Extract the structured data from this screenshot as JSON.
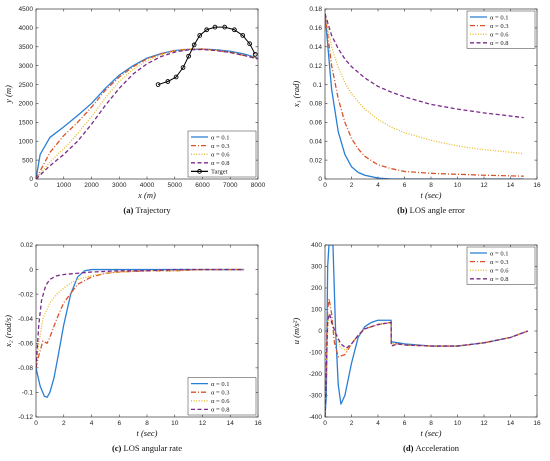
{
  "chart_data": [
    {
      "type": "line",
      "caption_letter": "(a)",
      "caption_text": "Trajectory",
      "xlabel": "x (m)",
      "ylabel": "y (m)",
      "xlim": [
        0,
        8000
      ],
      "ylim": [
        0,
        4500
      ],
      "xticks": [
        0,
        1000,
        2000,
        3000,
        4000,
        5000,
        6000,
        7000,
        8000
      ],
      "yticks": [
        0,
        500,
        1000,
        1500,
        2000,
        2500,
        3000,
        3500,
        4000,
        4500
      ],
      "legend_position": "bottom-right",
      "series": [
        {
          "name": "α = 0.1",
          "color": "#2a7fd4",
          "style": "solid",
          "x": [
            0,
            150,
            500,
            1000,
            1500,
            2000,
            2500,
            3000,
            3500,
            4000,
            4500,
            5000,
            5500,
            6000,
            6500,
            7000,
            7500,
            8000
          ],
          "y": [
            0,
            650,
            1100,
            1380,
            1680,
            2000,
            2400,
            2750,
            3000,
            3200,
            3320,
            3400,
            3430,
            3440,
            3420,
            3380,
            3310,
            3200
          ]
        },
        {
          "name": "α = 0.3",
          "color": "#d9532a",
          "style": "dashdot",
          "x": [
            0,
            500,
            1000,
            1500,
            2000,
            2500,
            3000,
            3500,
            4000,
            4500,
            5000,
            5500,
            6000,
            6500,
            7000,
            7500,
            8000
          ],
          "y": [
            0,
            700,
            1150,
            1500,
            1900,
            2350,
            2700,
            2970,
            3180,
            3310,
            3400,
            3440,
            3440,
            3400,
            3350,
            3270,
            3180
          ]
        },
        {
          "name": "α = 0.6",
          "color": "#e8b82a",
          "style": "dotted",
          "x": [
            0,
            500,
            1000,
            1500,
            2000,
            2500,
            3000,
            3500,
            4000,
            4500,
            5000,
            5500,
            6000,
            6500,
            7000,
            7500,
            8000
          ],
          "y": [
            0,
            450,
            800,
            1200,
            1650,
            2150,
            2580,
            2900,
            3130,
            3290,
            3390,
            3440,
            3440,
            3410,
            3360,
            3280,
            3200
          ]
        },
        {
          "name": "α = 0.8",
          "color": "#7b2a8c",
          "style": "dashed",
          "x": [
            0,
            500,
            1000,
            1500,
            2000,
            2500,
            3000,
            3500,
            4000,
            4500,
            5000,
            5500,
            6000,
            6500,
            7000,
            7500,
            8000
          ],
          "y": [
            0,
            350,
            650,
            1000,
            1450,
            1950,
            2400,
            2780,
            3050,
            3240,
            3360,
            3420,
            3430,
            3400,
            3350,
            3270,
            3180
          ]
        },
        {
          "name": "Target",
          "color": "#000000",
          "style": "solid",
          "markers": true,
          "x": [
            4400,
            4750,
            5050,
            5300,
            5500,
            5700,
            5900,
            6150,
            6450,
            6800,
            7150,
            7450,
            7700,
            7900
          ],
          "y": [
            2500,
            2580,
            2700,
            2950,
            3250,
            3550,
            3800,
            3950,
            4020,
            4020,
            3950,
            3800,
            3580,
            3300
          ]
        }
      ]
    },
    {
      "type": "line",
      "caption_letter": "(b)",
      "caption_text": "LOS angle error",
      "xlabel": "t (sec)",
      "ylabel": "x₁ (rad)",
      "xlim": [
        0,
        16
      ],
      "ylim": [
        0,
        0.18
      ],
      "xticks": [
        0,
        2,
        4,
        6,
        8,
        10,
        12,
        14,
        16
      ],
      "yticks": [
        0,
        0.02,
        0.04,
        0.06,
        0.08,
        0.1,
        0.12,
        0.14,
        0.16,
        0.18
      ],
      "ytick_labels": [
        "0",
        "0.02",
        "0.04",
        "0.06",
        "0.08",
        "0.1",
        "0.12",
        "0.14",
        "0.16",
        "0.18"
      ],
      "legend_position": "top-right",
      "series": [
        {
          "name": "α = 0.1",
          "color": "#2a7fd4",
          "style": "solid",
          "x": [
            0,
            0.5,
            1,
            1.5,
            2,
            2.5,
            3,
            4,
            5,
            6,
            8,
            10,
            12,
            15
          ],
          "y": [
            0.175,
            0.095,
            0.05,
            0.026,
            0.013,
            0.007,
            0.004,
            0.001,
            0,
            0,
            0,
            0,
            0,
            0
          ]
        },
        {
          "name": "α = 0.3",
          "color": "#d9532a",
          "style": "dashdot",
          "x": [
            0,
            0.5,
            1,
            1.5,
            2,
            2.5,
            3,
            4,
            5,
            6,
            8,
            10,
            12,
            15
          ],
          "y": [
            0.175,
            0.12,
            0.085,
            0.06,
            0.043,
            0.032,
            0.024,
            0.015,
            0.011,
            0.008,
            0.006,
            0.005,
            0.004,
            0.003
          ]
        },
        {
          "name": "α = 0.6",
          "color": "#e8b82a",
          "style": "dotted",
          "x": [
            0,
            0.5,
            1,
            1.5,
            2,
            3,
            4,
            5,
            6,
            8,
            10,
            12,
            15
          ],
          "y": [
            0.175,
            0.14,
            0.118,
            0.102,
            0.09,
            0.074,
            0.063,
            0.055,
            0.049,
            0.041,
            0.035,
            0.031,
            0.027
          ]
        },
        {
          "name": "α = 0.8",
          "color": "#7b2a8c",
          "style": "dashed",
          "x": [
            0,
            0.5,
            1,
            1.5,
            2,
            3,
            4,
            5,
            6,
            8,
            10,
            12,
            15
          ],
          "y": [
            0.175,
            0.152,
            0.138,
            0.127,
            0.119,
            0.107,
            0.098,
            0.092,
            0.087,
            0.079,
            0.074,
            0.07,
            0.065
          ]
        }
      ]
    },
    {
      "type": "line",
      "caption_letter": "(c)",
      "caption_text": "LOS angular rate",
      "xlabel": "t (sec)",
      "ylabel": "x₂ (rad/s)",
      "xlim": [
        0,
        16
      ],
      "ylim": [
        -0.12,
        0.02
      ],
      "xticks": [
        0,
        2,
        4,
        6,
        8,
        10,
        12,
        14,
        16
      ],
      "yticks": [
        -0.12,
        -0.1,
        -0.08,
        -0.06,
        -0.04,
        -0.02,
        0,
        0.02
      ],
      "ytick_labels": [
        "-0.12",
        "-0.1",
        "-0.08",
        "-0.06",
        "-0.04",
        "-0.02",
        "0",
        "0.02"
      ],
      "legend_position": "bottom-right",
      "series": [
        {
          "name": "α = 0.1",
          "color": "#2a7fd4",
          "style": "solid",
          "x": [
            0,
            0.3,
            0.6,
            0.8,
            1,
            1.3,
            1.6,
            2,
            2.5,
            3,
            3.5,
            4,
            5,
            6,
            8,
            10,
            12,
            15
          ],
          "y": [
            -0.08,
            -0.095,
            -0.103,
            -0.104,
            -0.1,
            -0.088,
            -0.07,
            -0.045,
            -0.02,
            -0.006,
            -0.001,
            0,
            0,
            0,
            0,
            0,
            0,
            0
          ]
        },
        {
          "name": "α = 0.3",
          "color": "#d9532a",
          "style": "dashdot",
          "x": [
            0,
            0.2,
            0.5,
            0.8,
            1,
            1.5,
            2,
            3,
            4,
            5,
            6,
            8,
            10,
            12,
            15
          ],
          "y": [
            -0.08,
            -0.07,
            -0.058,
            -0.06,
            -0.055,
            -0.04,
            -0.027,
            -0.012,
            -0.006,
            -0.003,
            -0.002,
            -0.001,
            -0.001,
            0,
            0
          ]
        },
        {
          "name": "α = 0.6",
          "color": "#e8b82a",
          "style": "dotted",
          "x": [
            0,
            0.2,
            0.5,
            1,
            1.5,
            2,
            2.5,
            3,
            4,
            5,
            6,
            8,
            10,
            12,
            15
          ],
          "y": [
            -0.08,
            -0.06,
            -0.04,
            -0.027,
            -0.02,
            -0.015,
            -0.011,
            -0.008,
            -0.005,
            -0.003,
            -0.002,
            -0.001,
            -0.001,
            0,
            0
          ]
        },
        {
          "name": "α = 0.8",
          "color": "#7b2a8c",
          "style": "dashed",
          "x": [
            0,
            0.2,
            0.4,
            0.7,
            1,
            1.5,
            2,
            3,
            4,
            6,
            8,
            10,
            12,
            15
          ],
          "y": [
            -0.08,
            -0.045,
            -0.025,
            -0.013,
            -0.008,
            -0.005,
            -0.004,
            -0.003,
            -0.002,
            -0.001,
            -0.001,
            0,
            0,
            0
          ]
        }
      ]
    },
    {
      "type": "line",
      "caption_letter": "(d)",
      "caption_text": "Acceleration",
      "xlabel": "t (sec)",
      "ylabel": "u (m/s²)",
      "xlim": [
        0,
        16
      ],
      "ylim": [
        -400,
        400
      ],
      "xticks": [
        0,
        2,
        4,
        6,
        8,
        10,
        12,
        14,
        16
      ],
      "yticks": [
        -400,
        -300,
        -200,
        -100,
        0,
        100,
        200,
        300,
        400
      ],
      "legend_position": "top-right",
      "series": [
        {
          "name": "α = 0.1",
          "color": "#2a7fd4",
          "style": "solid",
          "x": [
            0,
            0.1,
            0.2,
            0.3,
            0.4,
            0.6,
            0.8,
            1,
            1.2,
            1.5,
            2,
            2.5,
            3,
            3.5,
            4,
            4.5,
            4.99,
            5,
            5.5,
            6,
            8,
            10,
            12,
            14,
            15.3
          ],
          "y": [
            -400,
            -300,
            300,
            400,
            400,
            400,
            0,
            -250,
            -340,
            -300,
            -150,
            -30,
            20,
            40,
            50,
            50,
            50,
            -50,
            -55,
            -60,
            -70,
            -70,
            -55,
            -30,
            0
          ]
        },
        {
          "name": "α = 0.3",
          "color": "#d9532a",
          "style": "dashdot",
          "x": [
            0,
            0.1,
            0.2,
            0.3,
            0.5,
            0.7,
            1,
            1.5,
            2,
            2.5,
            3,
            4,
            4.99,
            5,
            5.5,
            6,
            8,
            10,
            12,
            14,
            15.3
          ],
          "y": [
            -400,
            -100,
            100,
            150,
            80,
            -50,
            -120,
            -110,
            -60,
            -20,
            10,
            30,
            40,
            -60,
            -60,
            -65,
            -70,
            -70,
            -55,
            -30,
            0
          ]
        },
        {
          "name": "α = 0.6",
          "color": "#e8b82a",
          "style": "dotted",
          "x": [
            0,
            0.15,
            0.3,
            0.5,
            0.8,
            1.2,
            1.6,
            2,
            2.5,
            3,
            4,
            4.99,
            5,
            5.5,
            6,
            8,
            10,
            12,
            14,
            15.3
          ],
          "y": [
            -400,
            -50,
            80,
            50,
            -20,
            -80,
            -90,
            -60,
            -20,
            10,
            30,
            40,
            -60,
            -60,
            -65,
            -70,
            -70,
            -55,
            -30,
            0
          ]
        },
        {
          "name": "α = 0.8",
          "color": "#7b2a8c",
          "style": "dashed",
          "x": [
            0,
            0.1,
            0.2,
            0.35,
            0.5,
            0.8,
            1.2,
            1.6,
            2,
            2.5,
            3,
            4,
            4.99,
            5,
            5.5,
            6,
            8,
            10,
            12,
            14,
            15.3
          ],
          "y": [
            -400,
            -200,
            50,
            80,
            40,
            -10,
            -60,
            -80,
            -60,
            -20,
            10,
            30,
            40,
            -70,
            -60,
            -65,
            -70,
            -70,
            -55,
            -30,
            0
          ]
        }
      ]
    }
  ]
}
